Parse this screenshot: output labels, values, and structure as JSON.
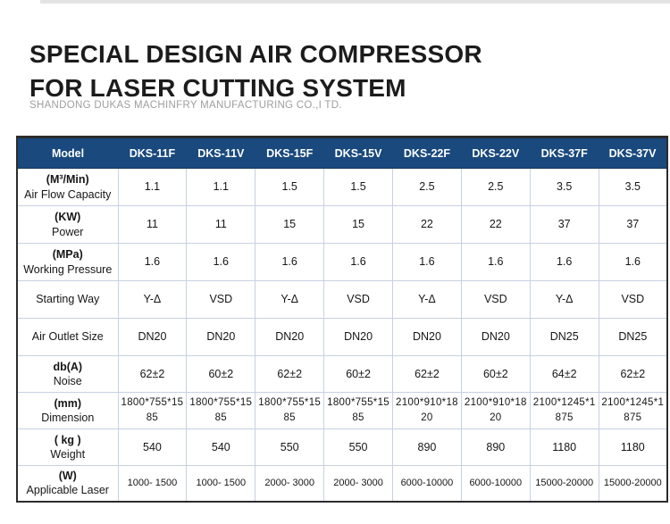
{
  "page": {
    "title_line1": "SPECIAL DESIGN AIR COMPRESSOR",
    "title_line2": "FOR LASER CUTTING SYSTEM",
    "subtitle": "SHANDONG DUKAS MACHINFRY MANUFACTURING CO.,I TD."
  },
  "colors": {
    "header_bg": "#19497d",
    "header_text": "#ffffff",
    "grid_line": "#c6d1e2",
    "outer_border": "#2c2c2c",
    "title_text": "#1c1c1c",
    "subtitle_text": "#9e9e9e",
    "top_strip": "#e4e4e4",
    "cell_text": "#161616"
  },
  "chart_data": {
    "type": "table",
    "columns": [
      "Model",
      "DKS-11F",
      "DKS-11V",
      "DKS-15F",
      "DKS-15V",
      "DKS-22F",
      "DKS-22V",
      "DKS-37F",
      "DKS-37V"
    ],
    "rows": [
      {
        "unit": "(M³/Min)",
        "label": "Air Flow Capacity",
        "style": "",
        "values": [
          "1.1",
          "1.1",
          "1.5",
          "1.5",
          "2.5",
          "2.5",
          "3.5",
          "3.5"
        ]
      },
      {
        "unit": "(KW)",
        "label": "Power",
        "style": "",
        "values": [
          "11",
          "11",
          "15",
          "15",
          "22",
          "22",
          "37",
          "37"
        ]
      },
      {
        "unit": "(MPa)",
        "label": "Working Pressure",
        "style": "",
        "values": [
          "1.6",
          "1.6",
          "1.6",
          "1.6",
          "1.6",
          "1.6",
          "1.6",
          "1.6"
        ]
      },
      {
        "unit": "",
        "label": "Starting Way",
        "style": "",
        "values": [
          "Y-Δ",
          "VSD",
          "Y-Δ",
          "VSD",
          "Y-Δ",
          "VSD",
          "Y-Δ",
          "VSD"
        ]
      },
      {
        "unit": "",
        "label": "Air Outlet Size",
        "style": "",
        "values": [
          "DN20",
          "DN20",
          "DN20",
          "DN20",
          "DN20",
          "DN20",
          "DN25",
          "DN25"
        ]
      },
      {
        "unit": "db(A)",
        "label": "Noise",
        "style": "",
        "values": [
          "62±2",
          "60±2",
          "62±2",
          "60±2",
          "62±2",
          "60±2",
          "64±2",
          "62±2"
        ]
      },
      {
        "unit": "(mm)",
        "label": "Dimension",
        "style": "dimension",
        "values": [
          "1800*755*1585",
          "1800*755*1585",
          "1800*755*1585",
          "1800*755*1585",
          "2100*910*1820",
          "2100*910*1820",
          "2100*1245*1875",
          "2100*1245*1875"
        ]
      },
      {
        "unit": "( kg )",
        "label": "Weight",
        "style": "",
        "values": [
          "540",
          "540",
          "550",
          "550",
          "890",
          "890",
          "1180",
          "1180"
        ]
      },
      {
        "unit": "(W)",
        "label": "Applicable Laser",
        "style": "laser",
        "values": [
          "1000- 1500",
          "1000- 1500",
          "2000- 3000",
          "2000- 3000",
          "6000-10000",
          "6000-10000",
          "15000-20000",
          "15000-20000"
        ]
      }
    ]
  }
}
